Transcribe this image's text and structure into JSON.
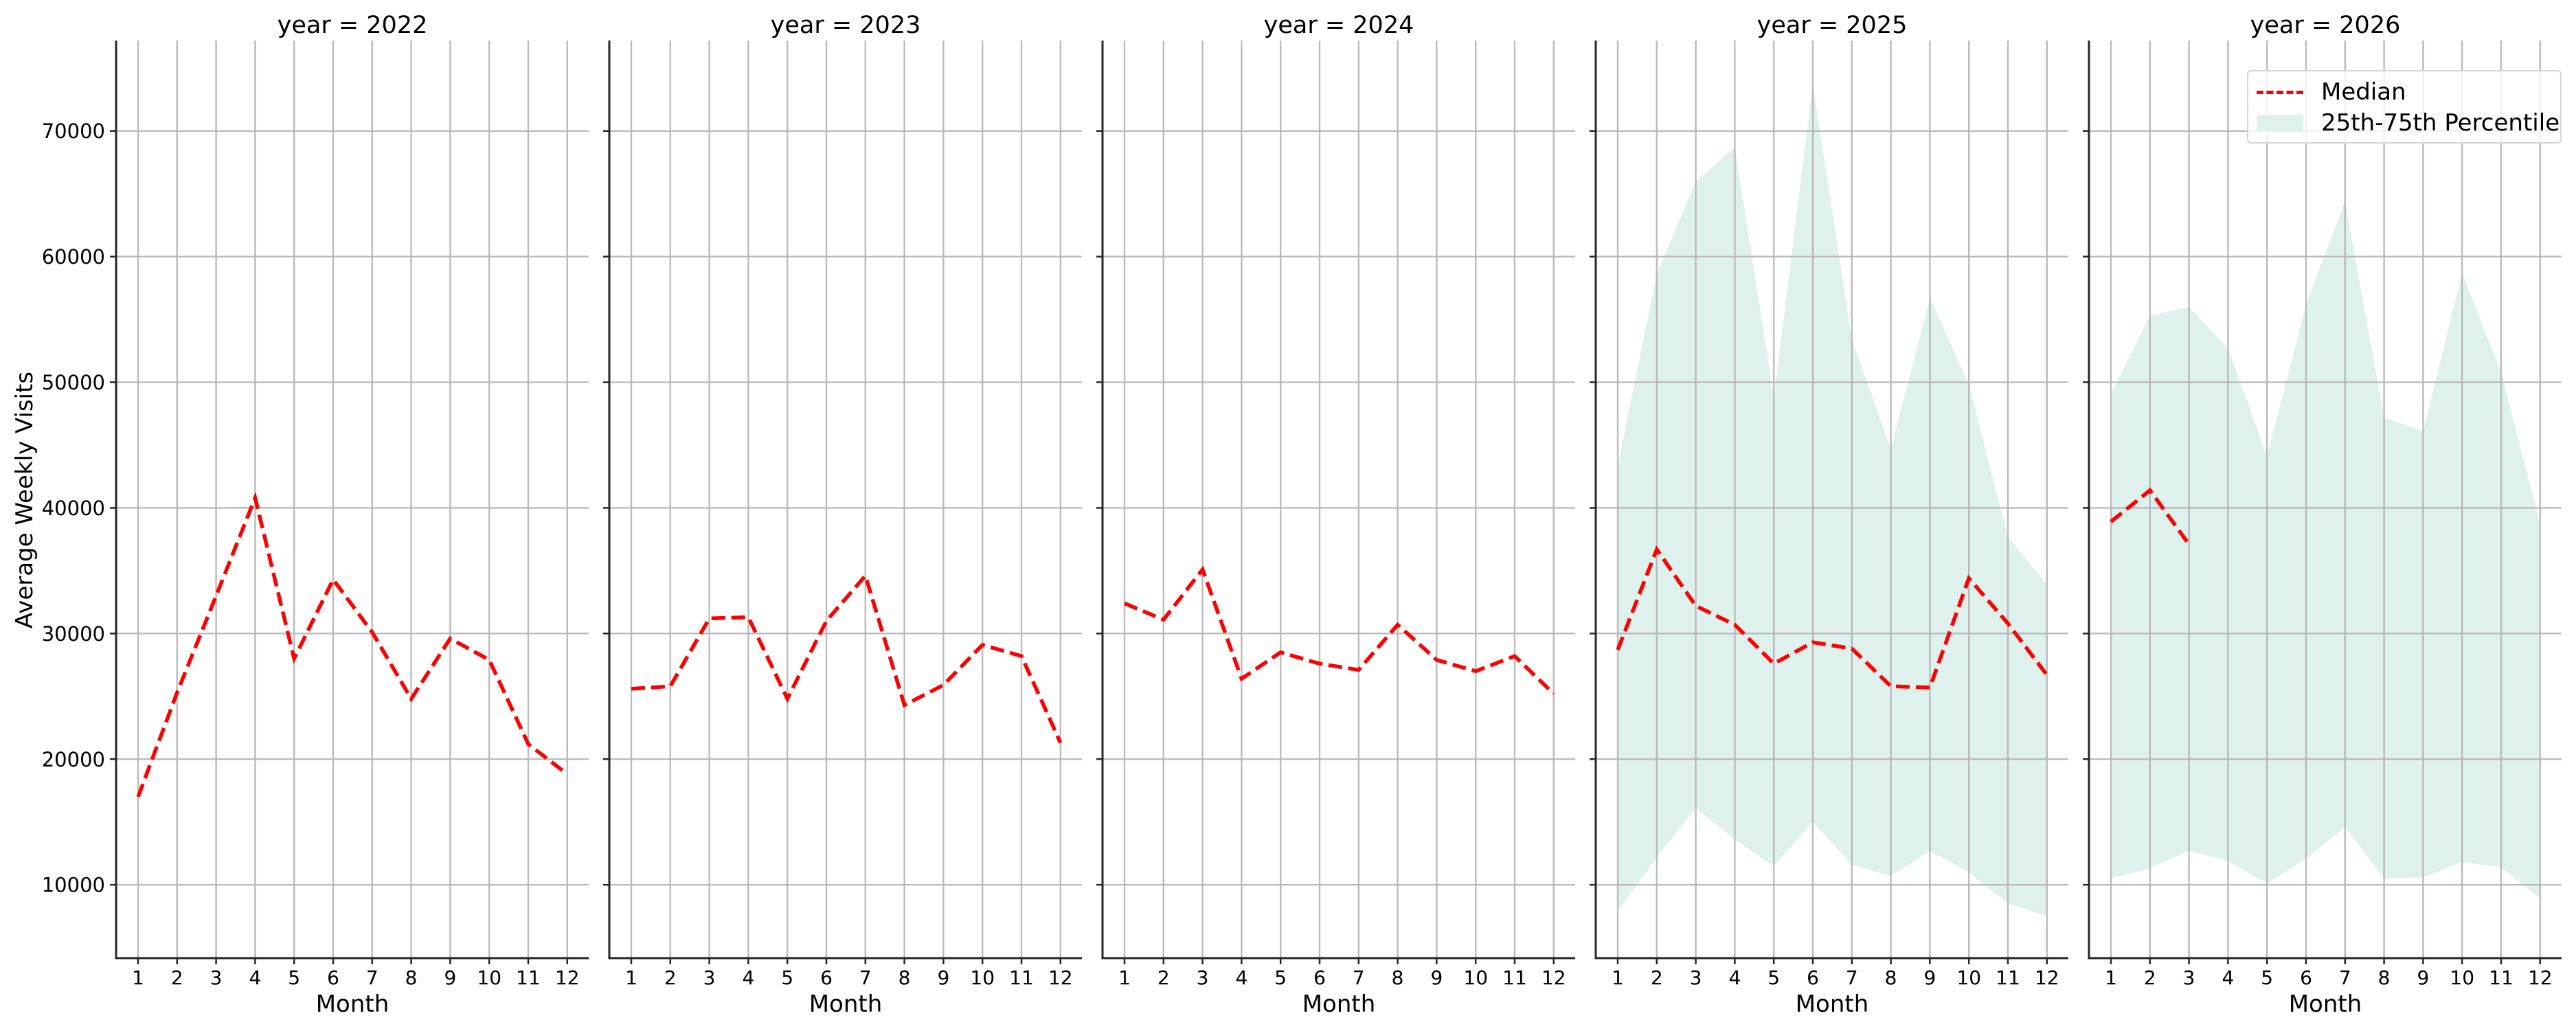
{
  "figure": {
    "ylabel": "Average Weekly Visits",
    "xlabel": "Month",
    "legend": {
      "median_label": "Median",
      "band_label": "25th-75th Percentile"
    },
    "colors": {
      "median": "#ff0000",
      "band": "#dff1ec",
      "grid": "#b0b0b0",
      "axis": "#262626"
    }
  },
  "chart_data": {
    "type": "line",
    "layout": "facet grid, 1 row x 5 columns, shared y-axis",
    "xlabel": "Month",
    "ylabel": "Average Weekly Visits",
    "x": [
      1,
      2,
      3,
      4,
      5,
      6,
      7,
      8,
      9,
      10,
      11,
      12
    ],
    "x_ticks": [
      "1",
      "2",
      "3",
      "4",
      "5",
      "6",
      "7",
      "8",
      "9",
      "10",
      "11",
      "12"
    ],
    "y_ticks": [
      10000,
      20000,
      30000,
      40000,
      50000,
      60000,
      70000
    ],
    "y_tick_labels": [
      "10000",
      "20000",
      "30000",
      "40000",
      "50000",
      "60000",
      "70000"
    ],
    "ylim": [
      4160,
      77200
    ],
    "grid": true,
    "legend": {
      "position": "upper right of last panel",
      "entries": [
        "Median",
        "25th-75th Percentile"
      ]
    },
    "panels": [
      {
        "title": "year = 2022",
        "median": [
          17000,
          25300,
          33000,
          40800,
          28000,
          34300,
          30100,
          24800,
          29600,
          27900,
          21200,
          18800
        ],
        "p25": null,
        "p75": null
      },
      {
        "title": "year = 2023",
        "median": [
          25600,
          25800,
          31200,
          31300,
          24800,
          31000,
          34600,
          24300,
          25900,
          29100,
          28200,
          21300
        ],
        "p25": null,
        "p75": null
      },
      {
        "title": "year = 2024",
        "median": [
          32400,
          31100,
          35100,
          26400,
          28500,
          27600,
          27100,
          30700,
          27900,
          27000,
          28200,
          25200
        ],
        "p25": null,
        "p75": null
      },
      {
        "title": "year = 2025",
        "median": [
          28700,
          36700,
          32200,
          30700,
          27600,
          29300,
          28800,
          25800,
          25700,
          34400,
          30800,
          26700
        ],
        "p25": [
          7900,
          12200,
          16100,
          13600,
          11500,
          15000,
          11600,
          10700,
          12700,
          11000,
          8500,
          7500
        ],
        "p75": [
          43400,
          58600,
          66000,
          68700,
          48800,
          73700,
          53400,
          44700,
          56700,
          49800,
          37700,
          33900
        ]
      },
      {
        "title": "year = 2026",
        "median": [
          38900,
          41400,
          37100,
          null,
          null,
          null,
          null,
          null,
          null,
          null,
          null,
          null
        ],
        "p25": [
          10500,
          11300,
          12700,
          11900,
          10100,
          12100,
          14600,
          10500,
          10600,
          11800,
          11400,
          8900
        ],
        "p75": [
          49100,
          55300,
          56000,
          52700,
          44100,
          56200,
          64400,
          47200,
          46100,
          58700,
          50800,
          38700
        ]
      }
    ]
  }
}
